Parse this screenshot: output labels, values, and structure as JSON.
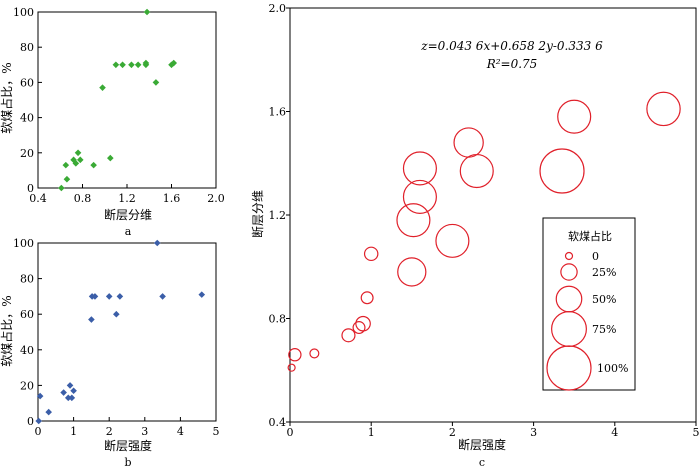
{
  "chart_data": [
    {
      "type": "scatter",
      "panel_label": "a",
      "xlabel": "断层分维",
      "ylabel": "软煤占比，%",
      "xlim": [
        0.4,
        2.0
      ],
      "ylim": [
        0,
        100
      ],
      "xticks": [
        "0.4",
        "0.8",
        "1.2",
        "1.6",
        "2.0"
      ],
      "yticks": [
        "0",
        "20",
        "40",
        "60",
        "80",
        "100"
      ],
      "marker_color": "#3aaa35",
      "marker": "diamond",
      "x": [
        0.61,
        0.66,
        0.65,
        0.72,
        0.74,
        0.76,
        0.78,
        0.9,
        0.98,
        1.05,
        1.1,
        1.16,
        1.24,
        1.3,
        1.37,
        1.38,
        1.37,
        1.46,
        1.6,
        1.62
      ],
      "y": [
        0,
        5,
        13,
        16,
        14,
        20,
        16,
        13,
        57,
        17,
        70,
        70,
        70,
        70,
        70,
        100,
        71,
        60,
        70,
        71
      ]
    },
    {
      "type": "scatter",
      "panel_label": "b",
      "xlabel": "断层强度",
      "ylabel": "软煤占比，%",
      "xlim": [
        0,
        5
      ],
      "ylim": [
        0,
        100
      ],
      "xticks": [
        "0",
        "1",
        "2",
        "3",
        "4",
        "5"
      ],
      "yticks": [
        "0",
        "20",
        "40",
        "60",
        "80",
        "100"
      ],
      "marker_color": "#3b5ea8",
      "marker": "diamond",
      "x": [
        0.02,
        0.06,
        0.3,
        0.72,
        0.85,
        0.9,
        0.95,
        1.0,
        1.5,
        1.52,
        1.6,
        2.0,
        2.2,
        2.3,
        3.35,
        3.5,
        4.6
      ],
      "y": [
        0,
        14,
        5,
        16,
        13,
        20,
        13,
        17,
        57,
        70,
        70,
        70,
        60,
        70,
        100,
        70,
        71
      ]
    },
    {
      "type": "scatter",
      "bubble": true,
      "panel_label": "c",
      "xlabel": "断层强度",
      "ylabel": "断层分维",
      "xlim": [
        0,
        5
      ],
      "ylim": [
        0.4,
        2.0
      ],
      "xticks": [
        "0",
        "1",
        "2",
        "3",
        "4",
        "5"
      ],
      "yticks": [
        "0.4",
        "0.8",
        "1.2",
        "1.6",
        "2.0"
      ],
      "marker_color": "#e0202a",
      "equation": "z=0.043 6x+0.658 2y-0.333 6",
      "r2": "R²=0.75",
      "legend_title": "软煤占比",
      "legend_entries": [
        "0",
        "25%",
        "50%",
        "75%",
        "100%"
      ],
      "legend_values": [
        0,
        25,
        50,
        75,
        100
      ],
      "legend_position": "bottom-right",
      "x": [
        0.02,
        0.06,
        0.3,
        0.72,
        0.85,
        0.9,
        0.95,
        1.0,
        1.5,
        1.52,
        1.6,
        1.6,
        2.0,
        2.2,
        2.3,
        3.35,
        3.5,
        4.6
      ],
      "y": [
        0.61,
        0.66,
        0.665,
        0.735,
        0.765,
        0.78,
        0.88,
        1.05,
        0.98,
        1.18,
        1.38,
        1.27,
        1.1,
        1.48,
        1.37,
        1.37,
        1.58,
        1.61
      ],
      "z": [
        0,
        14,
        5,
        16,
        13,
        20,
        13,
        17,
        57,
        70,
        70,
        70,
        70,
        60,
        70,
        100,
        70,
        71
      ]
    }
  ]
}
